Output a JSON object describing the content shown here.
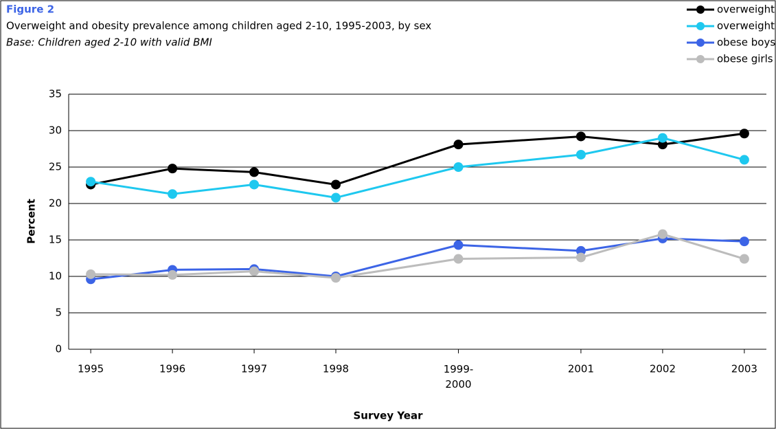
{
  "chart_data": {
    "type": "line",
    "title": "Figure 2",
    "subtitle": "Overweight and obesity prevalence among children aged 2-10, 1995-2003, by sex",
    "note": "Base: Children aged 2-10 with valid BMI",
    "x_label": "Survey Year",
    "y_label": "Percent",
    "x": [
      1995,
      1996,
      1997,
      1998,
      1999.5,
      2001,
      2002,
      2003
    ],
    "xlim": [
      1994.73,
      2003.27
    ],
    "xticks": [
      1995,
      1996,
      1997,
      1998,
      {
        "value": 1999.5,
        "label": "1999-\n2000"
      },
      2001,
      2002,
      2003
    ],
    "ylim": [
      0,
      35
    ],
    "yticks": [
      0,
      5,
      10,
      15,
      20,
      25,
      30,
      35
    ],
    "grid": true,
    "legend": "top-right",
    "series": [
      {
        "name": "overweight boys",
        "color": "#000000",
        "values": [
          22.6,
          24.8,
          24.3,
          22.6,
          28.1,
          29.2,
          28.1,
          29.6
        ]
      },
      {
        "name": "overweight girls",
        "color": "#1ec8ef",
        "values": [
          23.0,
          21.3,
          22.6,
          20.8,
          25.0,
          26.7,
          29.0,
          26.0
        ]
      },
      {
        "name": "obese boys",
        "color": "#3c64e6",
        "values": [
          9.6,
          10.9,
          11.0,
          10.0,
          14.3,
          13.5,
          15.2,
          14.8
        ]
      },
      {
        "name": "obese girls",
        "color": "#bcbcbc",
        "values": [
          10.3,
          10.2,
          10.7,
          9.8,
          12.4,
          12.6,
          15.8,
          12.4
        ]
      }
    ]
  }
}
